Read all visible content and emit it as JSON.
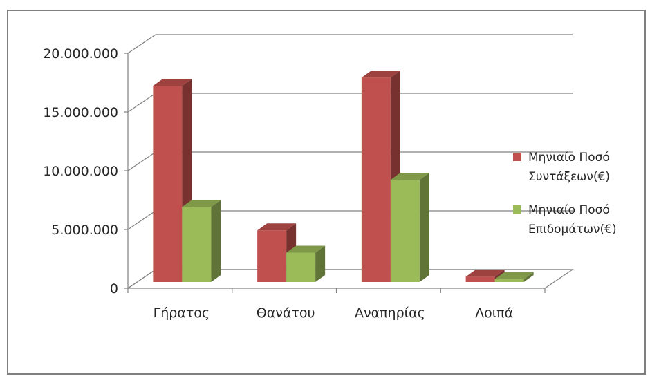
{
  "chart_data": {
    "type": "bar",
    "categories": [
      "Γήρατος",
      "Θανάτου",
      "Αναπηρίας",
      "Λοιπά"
    ],
    "series": [
      {
        "name": "Μηνιαίο Ποσό Συντάξεων(€)",
        "values": [
          16700000,
          4400000,
          17400000,
          450000
        ],
        "color": "#c0504d"
      },
      {
        "name": "Μηνιαίο Ποσό Επιδομάτων(€)",
        "values": [
          6400000,
          2500000,
          8700000,
          250000
        ],
        "color": "#9bbb59"
      }
    ],
    "yticks": [
      "0",
      "5.000.000",
      "10.000.000",
      "15.000.000",
      "20.000.000"
    ],
    "ylim": [
      0,
      20000000
    ],
    "grid": true,
    "legend_position": "right",
    "style": "3d-clustered-column"
  },
  "legend": [
    {
      "line1": "Μηνιαίο Ποσό",
      "line2": "Συντάξεων(€)",
      "color": "#c0504d"
    },
    {
      "line1": "Μηνιαίο Ποσό",
      "line2": "Επιδομάτων(€)",
      "color": "#9bbb59"
    }
  ]
}
